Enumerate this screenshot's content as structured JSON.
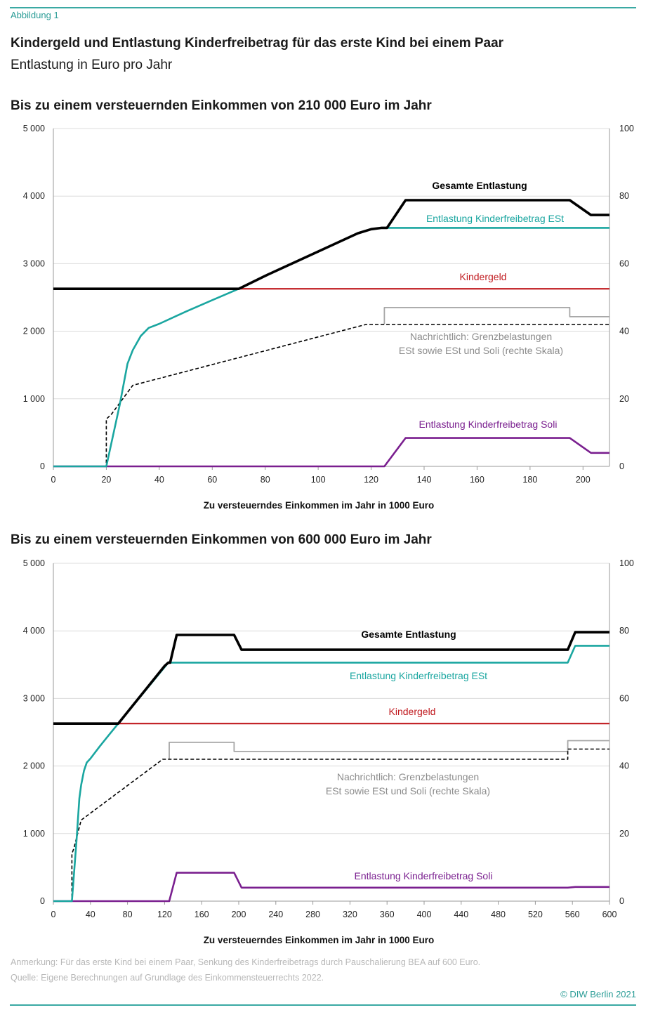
{
  "figure_label": "Abbildung 1",
  "title": "Kindergeld und Entlastung Kinderfreibetrag für das erste Kind bei einem Paar",
  "subtitle": "Entlastung in Euro pro Jahr",
  "note": "Anmerkung: Für das erste Kind bei einem Paar, Senkung des Kinderfreibetrags durch Pauschalierung BEA auf 600 Euro.",
  "source": "Quelle: Eigene Berechnungen auf Grundlage des Einkommensteuerrechts 2022.",
  "copyright": "© DIW Berlin 2021",
  "colors": {
    "total": "#000000",
    "est": "#1aa6a0",
    "kindergeld": "#c0191e",
    "soli": "#7a1f8f",
    "grenz_soli": "#a6a6a6",
    "grenz_est": "#000000",
    "accent": "#3aa9a3"
  },
  "chart_data": [
    {
      "heading": "Bis zu einem versteuernden Einkommen von 210 000 Euro im Jahr",
      "type": "line",
      "xlabel": "Zu versteuerndes Einkommen im Jahr in 1000 Euro",
      "xlim": [
        0,
        210
      ],
      "ylim": [
        0,
        5000
      ],
      "y2lim": [
        0,
        100
      ],
      "x_ticks": [
        "0",
        "20",
        "40",
        "60",
        "80",
        "100",
        "120",
        "140",
        "160",
        "180",
        "200"
      ],
      "y_ticks": [
        "0",
        "1 000",
        "2 000",
        "3 000",
        "4 000",
        "5 000"
      ],
      "y2_ticks": [
        "0",
        "20",
        "40",
        "60",
        "80",
        "100"
      ],
      "grid": "horizontal",
      "series": [
        {
          "key": "total",
          "name": "Gesamte Entlastung",
          "axis": "left",
          "x": [
            0,
            70,
            80,
            100,
            115,
            120,
            124,
            126,
            133,
            195,
            203,
            210
          ],
          "y": [
            2628,
            2628,
            2820,
            3180,
            3450,
            3510,
            3530,
            3530,
            3940,
            3940,
            3720,
            3720
          ]
        },
        {
          "key": "est",
          "name": "Entlastung Kinderfreibetrag ESt",
          "axis": "left",
          "x": [
            0,
            20,
            25,
            28,
            30,
            33,
            36,
            40,
            50,
            60,
            70,
            80,
            100,
            115,
            120,
            124,
            210
          ],
          "y": [
            0,
            0,
            900,
            1520,
            1720,
            1930,
            2050,
            2110,
            2290,
            2460,
            2628,
            2820,
            3180,
            3450,
            3510,
            3530,
            3530
          ]
        },
        {
          "key": "kindergeld",
          "name": "Kindergeld",
          "axis": "left",
          "x": [
            0,
            210
          ],
          "y": [
            2628,
            2628
          ]
        },
        {
          "key": "soli",
          "name": "Entlastung Kinderfreibetrag Soli",
          "axis": "left",
          "x": [
            0,
            125,
            133,
            195,
            203,
            210
          ],
          "y": [
            0,
            0,
            420,
            420,
            200,
            200
          ]
        },
        {
          "key": "grenz_soli",
          "name": "",
          "axis": "right",
          "dashed": false,
          "x": [
            125,
            125,
            195,
            195,
            210
          ],
          "y": [
            42,
            47,
            47,
            44.3,
            44.3
          ]
        },
        {
          "key": "grenz_est",
          "name": "",
          "axis": "right",
          "dashed": true,
          "x": [
            0,
            20,
            20,
            22,
            30,
            118,
            210
          ],
          "y": [
            0,
            0,
            14,
            15.5,
            24,
            42,
            42
          ]
        }
      ],
      "annotation": [
        "Nachrichtlich: Grenzbelastungen",
        "ESt sowie ESt und Soli (rechte Skala)"
      ]
    },
    {
      "heading": "Bis zu einem versteuernden Einkommen von 600 000 Euro im Jahr",
      "type": "line",
      "xlabel": "Zu versteuerndes Einkommen im Jahr in 1000 Euro",
      "xlim": [
        0,
        600
      ],
      "ylim": [
        0,
        5000
      ],
      "y2lim": [
        0,
        100
      ],
      "x_ticks": [
        "0",
        "40",
        "80",
        "120",
        "160",
        "200",
        "240",
        "280",
        "320",
        "360",
        "400",
        "440",
        "480",
        "520",
        "560",
        "600"
      ],
      "y_ticks": [
        "0",
        "1 000",
        "2 000",
        "3 000",
        "4 000",
        "5 000"
      ],
      "y2_ticks": [
        "0",
        "20",
        "40",
        "60",
        "80",
        "100"
      ],
      "grid": "horizontal",
      "series": [
        {
          "key": "total",
          "name": "Gesamte Entlastung",
          "axis": "left",
          "x": [
            0,
            70,
            120,
            124,
            126,
            133,
            195,
            203,
            555,
            563,
            600
          ],
          "y": [
            2628,
            2628,
            3480,
            3530,
            3530,
            3940,
            3940,
            3720,
            3720,
            3980,
            3980
          ]
        },
        {
          "key": "est",
          "name": "Entlastung Kinderfreibetrag ESt",
          "axis": "left",
          "x": [
            0,
            20,
            25,
            28,
            30,
            33,
            36,
            40,
            50,
            60,
            70,
            124,
            555,
            563,
            600
          ],
          "y": [
            0,
            0,
            900,
            1520,
            1720,
            1930,
            2050,
            2110,
            2290,
            2460,
            2628,
            3530,
            3530,
            3780,
            3780
          ]
        },
        {
          "key": "kindergeld",
          "name": "Kindergeld",
          "axis": "left",
          "x": [
            0,
            600
          ],
          "y": [
            2628,
            2628
          ]
        },
        {
          "key": "soli",
          "name": "Entlastung Kinderfreibetrag Soli",
          "axis": "left",
          "x": [
            0,
            125,
            133,
            195,
            203,
            555,
            563,
            600
          ],
          "y": [
            0,
            0,
            420,
            420,
            200,
            200,
            210,
            210
          ]
        },
        {
          "key": "grenz_soli",
          "name": "",
          "axis": "right",
          "dashed": false,
          "x": [
            125,
            125,
            195,
            195,
            555,
            555,
            600
          ],
          "y": [
            42,
            47,
            47,
            44.3,
            44.3,
            47.5,
            47.5
          ]
        },
        {
          "key": "grenz_est",
          "name": "",
          "axis": "right",
          "dashed": true,
          "x": [
            0,
            20,
            20,
            22,
            30,
            118,
            555,
            555,
            600
          ],
          "y": [
            0,
            0,
            14,
            15.5,
            24,
            42,
            42,
            45,
            45
          ]
        }
      ],
      "annotation": [
        "Nachrichtlich: Grenzbelastungen",
        "ESt sowie ESt und Soli (rechte Skala)"
      ]
    }
  ]
}
